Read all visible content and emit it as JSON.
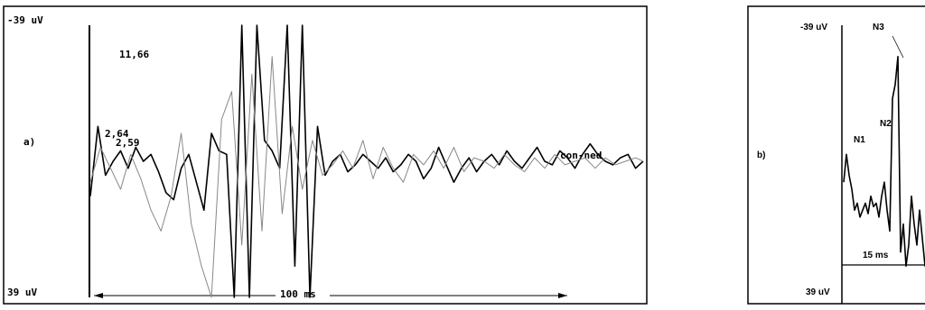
{
  "chart_data": [
    {
      "type": "line",
      "panel_label": "a)",
      "y_top_label": "-39 uV",
      "y_bottom_label": "39 uV",
      "ylim": [
        -39,
        39
      ],
      "time_label": "100 ms",
      "annotations": [
        "11,66",
        "2,64",
        "2,59"
      ],
      "series_label": "con-ned",
      "series": [
        {
          "style": "dark",
          "color": "#000000",
          "x": [
            0,
            3,
            6,
            9,
            12,
            15,
            18,
            21,
            24,
            27,
            30,
            33,
            36,
            39,
            42,
            45,
            48,
            51,
            54,
            57,
            60,
            63,
            66,
            69,
            72,
            75,
            78,
            81,
            84,
            87,
            90,
            93,
            96,
            99,
            102,
            105,
            108,
            111,
            114,
            117,
            120,
            123,
            126,
            129,
            132,
            135,
            138,
            141,
            144,
            147,
            150,
            153,
            156,
            159,
            162,
            165,
            168,
            171,
            174,
            177,
            180,
            183,
            186,
            189,
            192,
            195,
            198,
            201,
            204,
            207,
            210,
            213,
            216,
            219
          ],
          "y": [
            10,
            -10,
            4,
            0,
            -3,
            2,
            -4,
            0,
            -2,
            3,
            9,
            11,
            2,
            -2,
            6,
            14,
            -8,
            -3,
            -2,
            39,
            -39,
            39,
            -39,
            -6,
            -3,
            2,
            -39,
            30,
            -39,
            39,
            -10,
            4,
            0,
            -2,
            3,
            1,
            -2,
            0,
            2,
            -1,
            3,
            1,
            -2,
            0,
            5,
            2,
            -4,
            1,
            6,
            2,
            -1,
            3,
            0,
            -2,
            1,
            -3,
            0,
            2,
            -1,
            -4,
            0,
            1,
            -3,
            -1,
            2,
            -2,
            -5,
            -2,
            0,
            1,
            -1,
            -2,
            2,
            0
          ]
        },
        {
          "style": "light",
          "color": "#888888",
          "x": [
            0,
            4,
            8,
            12,
            16,
            20,
            24,
            28,
            32,
            36,
            40,
            44,
            48,
            52,
            56,
            60,
            64,
            68,
            72,
            76,
            80,
            84,
            88,
            92,
            96,
            100,
            104,
            108,
            112,
            116,
            120,
            124,
            128,
            132,
            136,
            140,
            144,
            148,
            152,
            156,
            160,
            164,
            168,
            172,
            176,
            180,
            184,
            188,
            192,
            196,
            200,
            204,
            208,
            212,
            216,
            219
          ],
          "y": [
            6,
            -4,
            2,
            8,
            -2,
            5,
            14,
            20,
            10,
            -8,
            18,
            30,
            39,
            -12,
            -20,
            24,
            -25,
            20,
            -30,
            15,
            -10,
            8,
            -6,
            4,
            1,
            -3,
            2,
            -6,
            5,
            -4,
            2,
            6,
            -2,
            1,
            -3,
            2,
            -4,
            3,
            -1,
            0,
            2,
            -2,
            1,
            3,
            -1,
            2,
            -2,
            1,
            0,
            -1,
            2,
            -1,
            1,
            0,
            -1,
            0
          ]
        }
      ]
    },
    {
      "type": "line",
      "panel_label": "b)",
      "y_top_label": "-39 uV",
      "y_bottom_label": "39 uV",
      "ylim": [
        -39,
        39
      ],
      "time_label": "15 ms",
      "peak_labels": [
        "N1",
        "N2",
        "N3"
      ],
      "series": [
        {
          "style": "dark",
          "color": "#000000",
          "x": [
            0,
            0.4,
            0.8,
            1.2,
            1.6,
            2.0,
            2.4,
            2.8,
            3.2,
            3.6,
            4.0,
            4.4,
            4.8,
            5.2,
            5.6,
            6.0,
            6.4,
            6.8,
            7.2,
            7.6,
            8.0,
            8.4,
            8.8,
            9.2,
            9.6,
            10.0,
            10.4,
            10.8,
            11.2,
            11.6,
            12.0,
            12.4,
            12.8
          ],
          "y": [
            6,
            -2,
            4,
            8,
            14,
            12,
            16,
            14,
            12,
            15,
            10,
            13,
            12,
            16,
            10,
            6,
            14,
            20,
            -18,
            -22,
            -30,
            26,
            18,
            30,
            24,
            10,
            18,
            24,
            14,
            22,
            30,
            26,
            28
          ]
        }
      ]
    }
  ]
}
